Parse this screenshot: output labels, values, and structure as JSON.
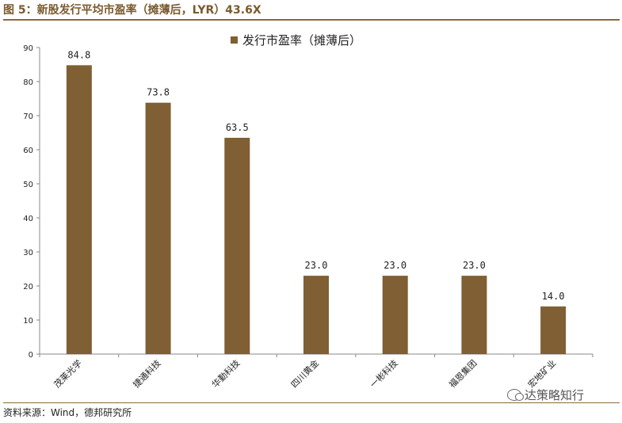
{
  "figure": {
    "title": "图 5：新股发行平均市盈率（摊薄后，LYR）43.6X",
    "source": "资料来源：Wind，德邦研究所",
    "watermark": "达策略知行",
    "watermark_icon": "wechat-icon"
  },
  "colors": {
    "bar": "#7f5f33",
    "title": "#7a5a2e",
    "axis": "#888888"
  },
  "chart_data": {
    "type": "bar",
    "title": "图 5：新股发行平均市盈率（摊薄后，LYR）43.6X",
    "categories": [
      "茂莱光学",
      "捷通科技",
      "华勤科技",
      "四川黄金",
      "一彬科技",
      "福恩集团",
      "宏地矿业"
    ],
    "series": [
      {
        "name": "发行市盈率（摊薄后）",
        "values": [
          84.8,
          73.8,
          63.5,
          23.0,
          23.0,
          23.0,
          14.0
        ]
      }
    ],
    "value_labels": [
      "84.8",
      "73.8",
      "63.5",
      "23.0",
      "23.0",
      "23.0",
      "14.0"
    ],
    "y_ticks": [
      0,
      10,
      20,
      30,
      40,
      50,
      60,
      70,
      80,
      90
    ],
    "ylim": [
      0,
      90
    ],
    "xlabel": "",
    "ylabel": "",
    "grid": false,
    "legend_position": "top-center"
  }
}
